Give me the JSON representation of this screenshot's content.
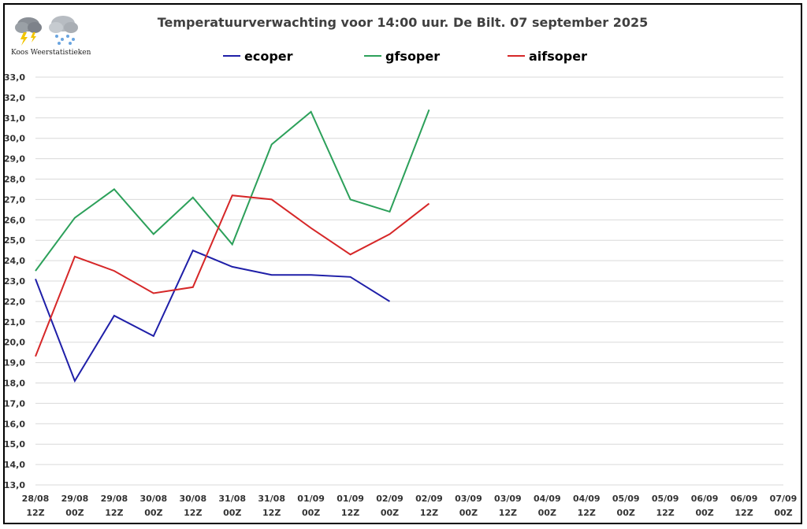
{
  "chart_data": {
    "type": "line",
    "title": "Temperatuurverwachting voor 14:00 uur. De Bilt. 07 september 2025",
    "xlabel": "",
    "ylabel": "",
    "ylim": [
      13.0,
      33.0
    ],
    "yticks": [
      "13,0",
      "14,0",
      "15,0",
      "16,0",
      "17,0",
      "18,0",
      "19,0",
      "20,0",
      "21,0",
      "22,0",
      "23,0",
      "24,0",
      "25,0",
      "26,0",
      "27,0",
      "28,0",
      "29,0",
      "30,0",
      "31,0",
      "32,0",
      "33,0"
    ],
    "categories": [
      [
        "28/08",
        "12Z"
      ],
      [
        "29/08",
        "00Z"
      ],
      [
        "29/08",
        "12Z"
      ],
      [
        "30/08",
        "00Z"
      ],
      [
        "30/08",
        "12Z"
      ],
      [
        "31/08",
        "00Z"
      ],
      [
        "31/08",
        "12Z"
      ],
      [
        "01/09",
        "00Z"
      ],
      [
        "01/09",
        "12Z"
      ],
      [
        "02/09",
        "00Z"
      ],
      [
        "02/09",
        "12Z"
      ],
      [
        "03/09",
        "00Z"
      ],
      [
        "03/09",
        "12Z"
      ],
      [
        "04/09",
        "00Z"
      ],
      [
        "04/09",
        "12Z"
      ],
      [
        "05/09",
        "00Z"
      ],
      [
        "05/09",
        "12Z"
      ],
      [
        "06/09",
        "00Z"
      ],
      [
        "06/09",
        "12Z"
      ],
      [
        "07/09",
        "00Z"
      ]
    ],
    "grid": "horizontal",
    "legend_position": "top",
    "series": [
      {
        "name": "ecoper",
        "color": "#1f1fa8",
        "values": [
          23.1,
          18.1,
          21.3,
          20.3,
          24.5,
          23.7,
          23.3,
          23.3,
          23.2,
          22.0,
          null,
          null,
          null,
          null,
          null,
          null,
          null,
          null,
          null,
          null
        ]
      },
      {
        "name": "gfsoper",
        "color": "#2ca05a",
        "values": [
          23.5,
          26.1,
          27.5,
          25.3,
          27.1,
          24.8,
          29.7,
          31.3,
          27.0,
          26.4,
          31.4,
          null,
          null,
          null,
          null,
          null,
          null,
          null,
          null,
          null
        ]
      },
      {
        "name": "aifsoper",
        "color": "#d62728",
        "values": [
          19.3,
          24.2,
          23.5,
          22.4,
          22.7,
          27.2,
          27.0,
          25.6,
          24.3,
          25.3,
          26.8,
          null,
          null,
          null,
          null,
          null,
          null,
          null,
          null,
          null
        ]
      }
    ]
  },
  "logo": {
    "text": "Koos Weerstatistieken",
    "icons": [
      "storm-cloud-icon",
      "snow-cloud-icon"
    ]
  }
}
